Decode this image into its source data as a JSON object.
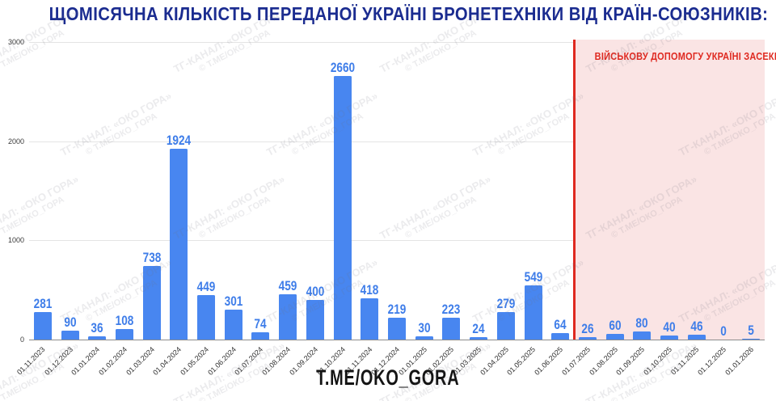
{
  "title": "ЩОМІСЯЧНА КІЛЬКІСТЬ ПЕРЕДАНОЇ УКРАЇНІ БРОНЕТЕХНІКИ ВІД КРАЇН-СОЮЗНИКІВ:",
  "footer": "T.ME/OKO_GORA",
  "annotation": {
    "text": "ВІЙСЬКОВУ ДОПОМОГУ УКРАЇНІ ЗАСЕКРЕЧЕНО"
  },
  "watermark": {
    "line1": "ТГ-КАНАЛ: «ОКО ГОРА»",
    "line2": "© Т.МЕ/ОКО_ГОРА"
  },
  "colors": {
    "title": "#1b2c90",
    "bar": "#4886f0",
    "bar_label": "#3e7de9",
    "grid": "#e4e4e4",
    "zero_axis": "#8c8c8c",
    "red": "#df2920",
    "pink_zone": "#fae4e4",
    "footer_text": "#141414"
  },
  "chart_data": {
    "type": "bar",
    "title": "ЩОМІСЯЧНА КІЛЬКІСТЬ ПЕРЕДАНОЇ УКРАЇНІ БРОНЕТЕХНІКИ ВІД КРАЇН-СОЮЗНИКІВ:",
    "xlabel": "",
    "ylabel": "",
    "ylim": [
      0,
      3000
    ],
    "y_ticks": [
      0,
      1000,
      2000,
      3000
    ],
    "grid": true,
    "legend": false,
    "categories": [
      "01.11.2023",
      "01.12.2023",
      "01.01.2024",
      "01.02.2024",
      "01.03.2024",
      "01.04.2024",
      "01.05.2024",
      "01.06.2024",
      "01.07.2024",
      "01.08.2024",
      "01.09.2024",
      "01.10.2024",
      "01.11.2024",
      "01.12.2024",
      "01.01.2025",
      "01.02.2025",
      "01.03.2025",
      "01.04.2025",
      "01.05.2025",
      "01.06.2025",
      "01.07.2025",
      "01.08.2025",
      "01.09.2025",
      "01.10.2025",
      "01.11.2025",
      "01.12.2025",
      "01.01.2026"
    ],
    "values": [
      281,
      90,
      36,
      108,
      738,
      1924,
      449,
      301,
      74,
      459,
      400,
      2660,
      418,
      219,
      30,
      223,
      24,
      279,
      549,
      64,
      26,
      60,
      80,
      40,
      46,
      0,
      5
    ],
    "secret_zone_from_index": 20,
    "secret_zone_label": "ВІЙСЬКОВУ ДОПОМОГУ УКРАЇНІ ЗАСЕКРЕЧЕНО"
  }
}
